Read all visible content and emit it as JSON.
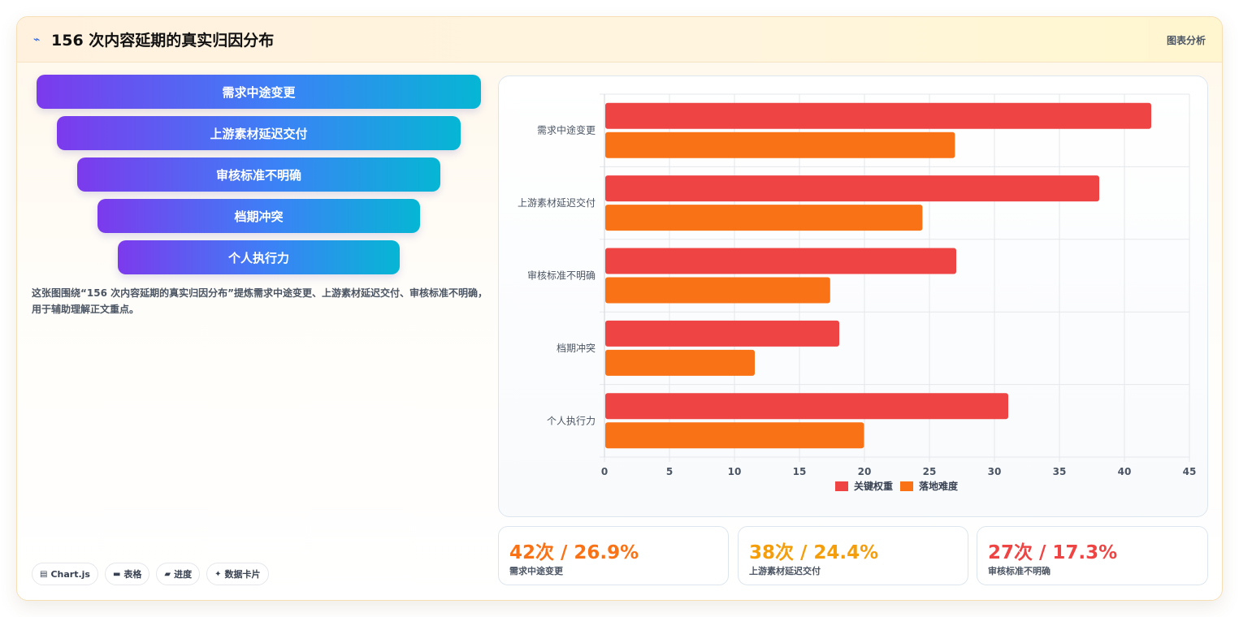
{
  "header": {
    "title": "156 次内容延期的真实归因分布",
    "tag": "图表分析"
  },
  "funnel": [
    "需求中途变更",
    "上游素材延迟交付",
    "审核标准不明确",
    "档期冲突",
    "个人执行力"
  ],
  "description": "这张图围绕“156 次内容延期的真实归因分布”提炼需求中途变更、上游素材延迟交付、审核标准不明确，用于辅助理解正文重点。",
  "pills": [
    {
      "icon": "chart-icon",
      "label": "Chart.js"
    },
    {
      "icon": "table-icon",
      "label": "表格"
    },
    {
      "icon": "progress-icon",
      "label": "进度"
    },
    {
      "icon": "sparkle-icon",
      "label": "数据卡片"
    }
  ],
  "chart_data": {
    "type": "bar",
    "orientation": "horizontal",
    "categories": [
      "需求中途变更",
      "上游素材延迟交付",
      "审核标准不明确",
      "档期冲突",
      "个人执行力"
    ],
    "series": [
      {
        "name": "关键权重",
        "color": "#ef4444",
        "values": [
          42,
          38,
          27,
          18,
          31
        ]
      },
      {
        "name": "落地难度",
        "color": "#f97316",
        "values": [
          26.9,
          24.4,
          17.3,
          11.5,
          19.9
        ]
      }
    ],
    "xlim": [
      0,
      45
    ],
    "xticks": [
      "0",
      "5",
      "10",
      "15",
      "20",
      "25",
      "30",
      "35",
      "40",
      "45"
    ],
    "grid": true,
    "legend": "bottom-center"
  },
  "stats": [
    {
      "value": "42次 / 26.9%",
      "label": "需求中途变更",
      "color": "#f97316"
    },
    {
      "value": "38次 / 24.4%",
      "label": "上游素材延迟交付",
      "color": "#f59e0b"
    },
    {
      "value": "27次 / 17.3%",
      "label": "审核标准不明确",
      "color": "#ef4444"
    }
  ]
}
